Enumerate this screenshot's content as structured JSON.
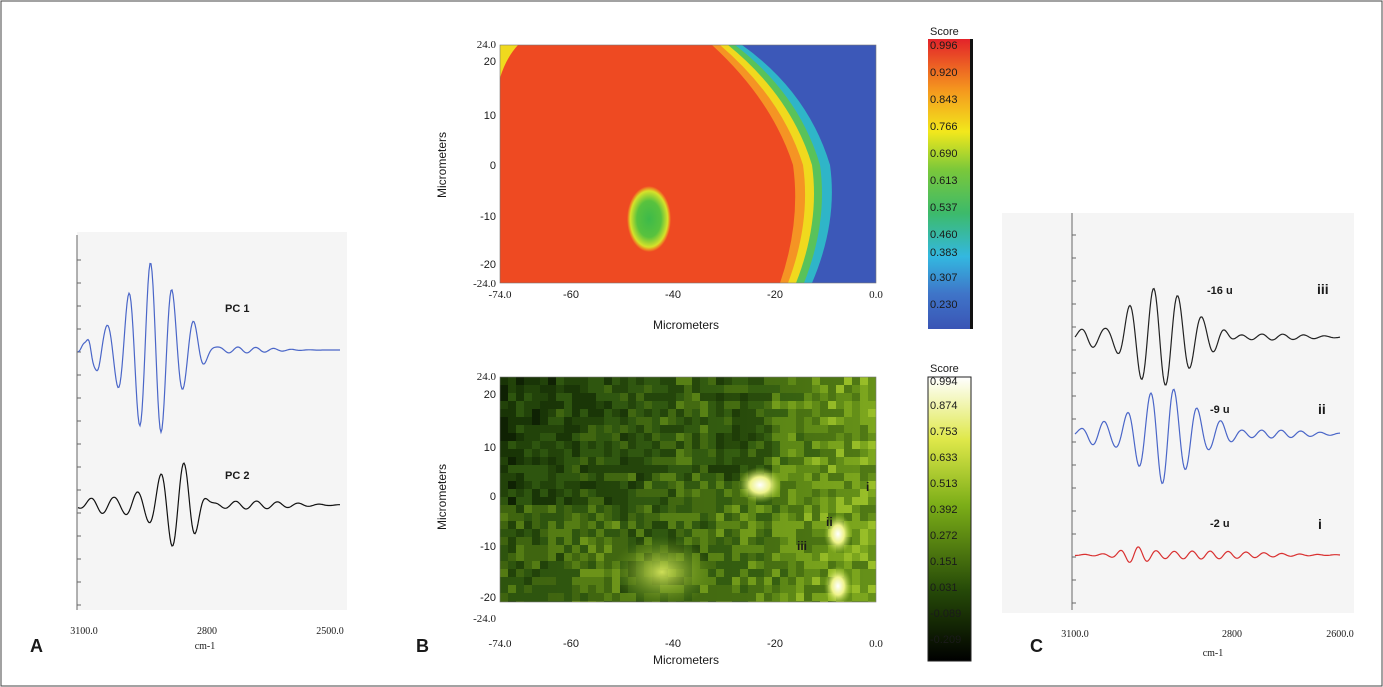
{
  "panel_labels": {
    "a": "A",
    "b": "B",
    "c": "C"
  },
  "panel_a": {
    "spectra": [
      {
        "label": "PC 1",
        "color": "#4a66c8"
      },
      {
        "label": "PC 2",
        "color": "#111111"
      }
    ],
    "xticks": [
      "3100.0",
      "2800",
      "2500.0"
    ],
    "xlabel": "cm-1"
  },
  "map_top": {
    "ylabel": "Micrometers",
    "xlabel": "Micrometers",
    "yticks": [
      "24.0",
      "20",
      "10",
      "0",
      "-10",
      "-20",
      "-24.0"
    ],
    "xticks": [
      "-74.0",
      "-60",
      "-40",
      "-20",
      "0.0"
    ],
    "colorbar_title": "Score",
    "colorbar_values": [
      "0.996",
      "0.920",
      "0.843",
      "0.766",
      "0.690",
      "0.613",
      "0.537",
      "0.460",
      "0.383",
      "0.307",
      "0.230"
    ]
  },
  "map_bottom": {
    "ylabel": "Micrometers",
    "xlabel": "Micrometers",
    "yticks": [
      "24.0",
      "20",
      "10",
      "0",
      "-10",
      "-20",
      "-24.0"
    ],
    "xticks": [
      "-74.0",
      "-60",
      "-40",
      "-20",
      "0.0"
    ],
    "colorbar_title": "Score",
    "colorbar_values": [
      "0.994",
      "0.874",
      "0.753",
      "0.633",
      "0.513",
      "0.392",
      "0.272",
      "0.151",
      "0.031",
      "-0.089",
      "-0.209"
    ],
    "markers": [
      "i",
      "ii",
      "iii"
    ]
  },
  "panel_c": {
    "spectra": [
      {
        "depth": "-16 u",
        "roman": "iii",
        "color": "#222222"
      },
      {
        "depth": "-9 u",
        "roman": "ii",
        "color": "#4a66c8"
      },
      {
        "depth": "-2 u",
        "roman": "i",
        "color": "#d93030"
      }
    ],
    "xticks": [
      "3100.0",
      "2800",
      "2600.0"
    ],
    "xlabel": "cm-1"
  }
}
